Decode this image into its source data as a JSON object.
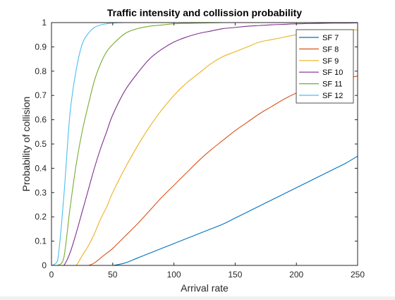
{
  "chart_data": {
    "type": "line",
    "title": "Traffic intensity and collission probability",
    "xlabel": "Arrival rate",
    "ylabel": "Probability of collision",
    "xlim": [
      0,
      250
    ],
    "ylim": [
      0,
      1
    ],
    "xticks": [
      0,
      50,
      100,
      150,
      200,
      250
    ],
    "yticks": [
      0,
      0.1,
      0.2,
      0.3,
      0.4,
      0.5,
      0.6,
      0.7,
      0.8,
      0.9,
      1
    ],
    "grid": false,
    "legend_position": "top-right",
    "x": [
      0,
      5,
      10,
      15,
      20,
      25,
      30,
      35,
      40,
      45,
      50,
      60,
      70,
      80,
      90,
      100,
      110,
      120,
      130,
      140,
      150,
      160,
      170,
      180,
      190,
      200,
      210,
      220,
      230,
      240,
      250
    ],
    "series": [
      {
        "name": "SF 7",
        "color": "#0072bd",
        "values": [
          0,
          0,
          0,
          0,
          0,
          0,
          0,
          0,
          0,
          0,
          0,
          0.01,
          0.03,
          0.05,
          0.07,
          0.09,
          0.11,
          0.13,
          0.15,
          0.17,
          0.195,
          0.22,
          0.245,
          0.27,
          0.295,
          0.32,
          0.345,
          0.37,
          0.395,
          0.42,
          0.45
        ]
      },
      {
        "name": "SF 8",
        "color": "#d95319",
        "values": [
          0,
          0,
          0,
          0,
          0,
          0,
          0,
          0.01,
          0.03,
          0.05,
          0.07,
          0.12,
          0.17,
          0.225,
          0.28,
          0.33,
          0.38,
          0.43,
          0.475,
          0.515,
          0.555,
          0.59,
          0.625,
          0.655,
          0.685,
          0.71,
          0.73,
          0.745,
          0.76,
          0.77,
          0.78
        ]
      },
      {
        "name": "SF 9",
        "color": "#edb120",
        "values": [
          0,
          0,
          0,
          0,
          0,
          0.04,
          0.08,
          0.13,
          0.19,
          0.24,
          0.3,
          0.4,
          0.49,
          0.57,
          0.64,
          0.7,
          0.75,
          0.79,
          0.83,
          0.86,
          0.88,
          0.9,
          0.92,
          0.93,
          0.94,
          0.95,
          0.955,
          0.96,
          0.965,
          0.968,
          0.97
        ]
      },
      {
        "name": "SF 10",
        "color": "#7e2f8e",
        "values": [
          0,
          0,
          0,
          0.05,
          0.13,
          0.22,
          0.31,
          0.4,
          0.48,
          0.55,
          0.62,
          0.72,
          0.79,
          0.85,
          0.89,
          0.92,
          0.94,
          0.955,
          0.965,
          0.975,
          0.98,
          0.985,
          0.988,
          0.991,
          0.993,
          0.995,
          0.996,
          0.997,
          0.998,
          0.998,
          0.999
        ]
      },
      {
        "name": "SF 11",
        "color": "#77ac30",
        "values": [
          0,
          0,
          0.03,
          0.23,
          0.41,
          0.55,
          0.66,
          0.76,
          0.83,
          0.88,
          0.91,
          0.955,
          0.975,
          0.985,
          0.99,
          0.995,
          0.997,
          0.998,
          0.999,
          1,
          1,
          1,
          1,
          1,
          1,
          1,
          1,
          1,
          1,
          1,
          1
        ]
      },
      {
        "name": "SF 12",
        "color": "#4dbeee",
        "values": [
          0,
          0.02,
          0.28,
          0.62,
          0.8,
          0.91,
          0.955,
          0.98,
          0.99,
          0.995,
          0.998,
          1,
          1,
          1,
          1,
          1,
          1,
          1,
          1,
          1,
          1,
          1,
          1,
          1,
          1,
          1,
          1,
          1,
          1,
          1,
          1
        ]
      }
    ]
  }
}
